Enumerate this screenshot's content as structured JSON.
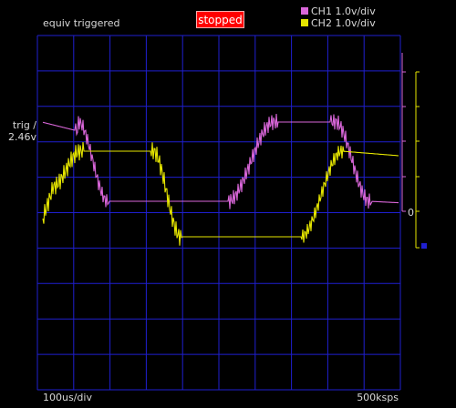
{
  "header": {
    "mode": "equiv triggered",
    "status": "stopped"
  },
  "legend": [
    {
      "label": "CH1 1.0v/div",
      "color": "#d966d9"
    },
    {
      "label": "CH2 1.0v/div",
      "color": "#e6e600"
    }
  ],
  "trigger": {
    "line1": "trig /",
    "line2": "2.46v"
  },
  "footer": {
    "timebase": "100us/div",
    "samplerate": "500ksps"
  },
  "right_scale": {
    "zero_label": "0"
  },
  "colors": {
    "grid": "#1f1fd0",
    "ch1": "#d966d9",
    "ch2": "#e6e600",
    "status_bg": "#ff0000"
  }
}
